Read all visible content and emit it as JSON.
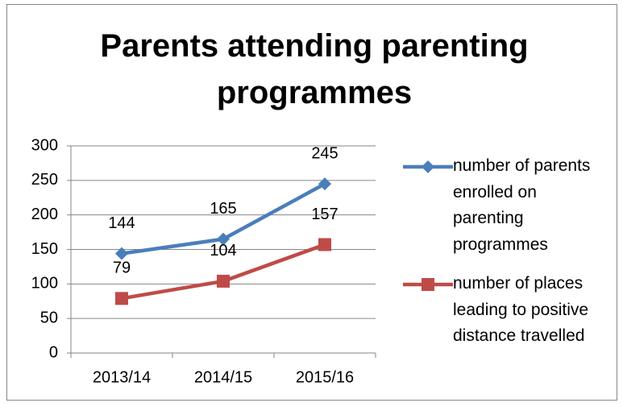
{
  "chart_data": {
    "type": "line",
    "title": "Parents attending parenting programmes",
    "categories": [
      "2013/14",
      "2014/15",
      "2015/16"
    ],
    "series": [
      {
        "name": "number of parents enrolled on parenting programmes",
        "color": "#4a7ebb",
        "marker": "diamond",
        "values": [
          144,
          165,
          245
        ]
      },
      {
        "name": "number of places leading to positive distance travelled",
        "color": "#be4b48",
        "marker": "square",
        "values": [
          79,
          104,
          157
        ]
      }
    ],
    "ylim": [
      0,
      300
    ],
    "yticks": [
      0,
      50,
      100,
      150,
      200,
      250,
      300
    ],
    "grid": true,
    "legend": "right"
  }
}
